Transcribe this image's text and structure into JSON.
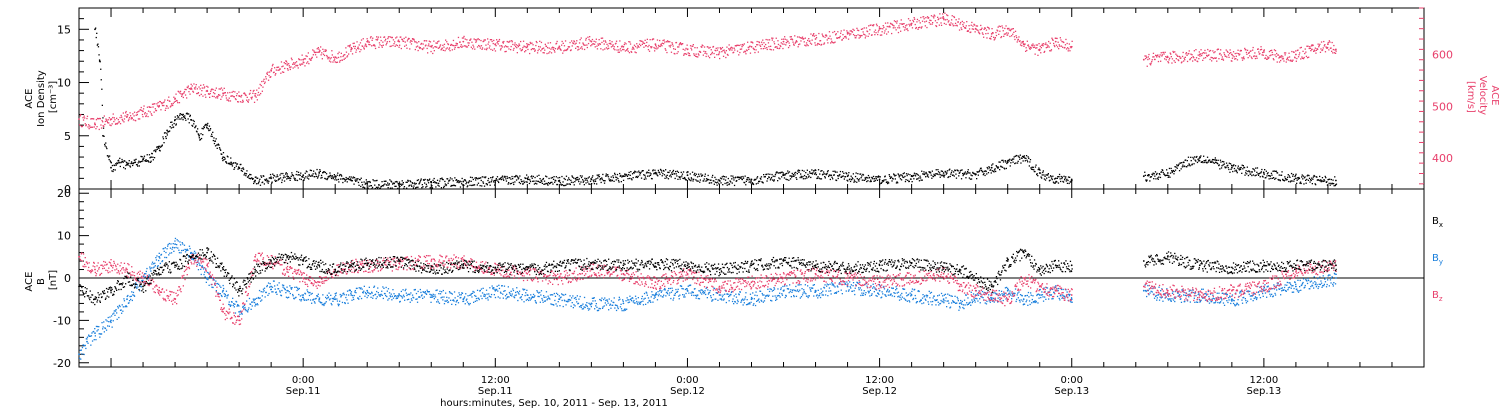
{
  "colors": {
    "axis": "#000000",
    "density": "#000000",
    "velocity": "#e8406c",
    "bx": "#000000",
    "by": "#1a7fdc",
    "bz": "#e8406c"
  },
  "x_axis": {
    "title": "hours:minutes, Sep. 10, 2011 - Sep. 13, 2011",
    "range_hours": [
      -14,
      70
    ],
    "ticks": [
      {
        "hour": 0,
        "time": "0:00",
        "date": "Sep.11"
      },
      {
        "hour": 12,
        "time": "12:00",
        "date": "Sep.11"
      },
      {
        "hour": 24,
        "time": "0:00",
        "date": "Sep.12"
      },
      {
        "hour": 36,
        "time": "12:00",
        "date": "Sep.12"
      },
      {
        "hour": 48,
        "time": "0:00",
        "date": "Sep.13"
      },
      {
        "hour": 60,
        "time": "12:00",
        "date": "Sep.13"
      }
    ]
  },
  "chart_data": [
    {
      "type": "scatter",
      "panel": "top",
      "left_axis": {
        "label_lines": [
          "ACE",
          "Ion Density",
          "[cm⁻³]"
        ],
        "ylim": [
          0,
          17
        ],
        "ticks": [
          0,
          5,
          10,
          15
        ]
      },
      "right_axis": {
        "label_lines": [
          "ACE",
          "Velocity",
          "[km/s]"
        ],
        "ylim": [
          340,
          690
        ],
        "ticks": [
          400,
          500,
          600
        ]
      },
      "gap_hours": [
        48,
        52.5
      ],
      "series": [
        {
          "key": "density",
          "axis": "left",
          "x": [
            -13,
            -12.7,
            -12.5,
            -12,
            -11.5,
            -11,
            -10.5,
            -10,
            -9.5,
            -9,
            -8.5,
            -8,
            -7.5,
            -7,
            -6.5,
            -6,
            -5.5,
            -5,
            -4.5,
            -4,
            -3,
            -2,
            -1,
            0,
            1,
            2,
            3,
            4,
            6,
            8,
            10,
            12,
            14,
            16,
            18,
            20,
            22,
            24,
            26,
            28,
            30,
            32,
            34,
            36,
            38,
            40,
            42,
            43,
            44,
            45,
            46,
            47,
            48,
            52.5,
            54,
            55,
            56,
            57,
            58,
            60,
            62,
            64.5
          ],
          "y": [
            15,
            12,
            5,
            2,
            2.5,
            2.3,
            2.5,
            2.8,
            3,
            4,
            5.5,
            6.5,
            7,
            6.5,
            5,
            6,
            4.5,
            3,
            2.5,
            2,
            0.8,
            1,
            1.2,
            1.3,
            1.5,
            1.2,
            0.8,
            0.5,
            0.5,
            0.6,
            0.7,
            0.8,
            1,
            0.8,
            0.9,
            1.2,
            1.5,
            1.3,
            0.8,
            0.9,
            1.3,
            1.5,
            1.2,
            0.9,
            1.2,
            1.5,
            1.4,
            2,
            2.5,
            3,
            1.5,
            1,
            0.9,
            1.2,
            1.5,
            2.5,
            3,
            2.5,
            2,
            1.5,
            1,
            0.8
          ]
        },
        {
          "key": "velocity",
          "axis": "right",
          "x": [
            -14,
            -13,
            -12,
            -11,
            -10,
            -9,
            -8,
            -7,
            -6,
            -5,
            -4,
            -3,
            -2,
            -1,
            0,
            1,
            2,
            3,
            4,
            6,
            8,
            10,
            12,
            14,
            16,
            18,
            20,
            22,
            24,
            26,
            28,
            30,
            32,
            34,
            36,
            38,
            40,
            42,
            43,
            44,
            45,
            46,
            47,
            48,
            52.5,
            54,
            56,
            58,
            60,
            61,
            62,
            63,
            64,
            64.5
          ],
          "y": [
            475,
            465,
            475,
            480,
            490,
            500,
            515,
            535,
            530,
            525,
            520,
            520,
            570,
            580,
            590,
            605,
            595,
            610,
            625,
            625,
            615,
            625,
            620,
            615,
            615,
            625,
            615,
            620,
            610,
            605,
            615,
            625,
            630,
            640,
            650,
            660,
            670,
            650,
            640,
            650,
            620,
            610,
            625,
            615,
            590,
            595,
            600,
            600,
            605,
            595,
            600,
            610,
            620,
            610
          ]
        }
      ]
    },
    {
      "type": "scatter",
      "panel": "bottom",
      "left_axis": {
        "label_lines": [
          "ACE",
          "B",
          "[nT]"
        ],
        "ylim": [
          -21,
          21
        ],
        "ticks": [
          -20,
          -10,
          0,
          10,
          20
        ]
      },
      "legend_placement": "right",
      "gap_hours": [
        48,
        52.5
      ],
      "series": [
        {
          "key": "bx",
          "name": "B",
          "subscript": "x",
          "x": [
            -14,
            -13,
            -12,
            -11,
            -10,
            -9,
            -8,
            -7,
            -6,
            -5,
            -4,
            -3,
            -2,
            -1,
            0,
            1,
            2,
            3,
            4,
            6,
            8,
            10,
            12,
            14,
            16,
            18,
            20,
            22,
            24,
            26,
            28,
            30,
            32,
            34,
            36,
            38,
            40,
            41,
            42,
            43,
            44,
            45,
            46,
            47,
            48,
            52.5,
            54,
            56,
            58,
            60,
            62,
            64.5
          ],
          "y": [
            -2,
            -5,
            -3,
            0,
            -2,
            2,
            3,
            5,
            6,
            2,
            -3,
            2,
            4,
            5,
            4,
            3,
            2,
            3,
            3.5,
            4,
            2,
            3,
            2.5,
            2,
            3,
            3.5,
            3,
            3.5,
            3,
            2,
            3,
            4,
            3,
            2.5,
            3,
            3.5,
            2.5,
            2,
            0,
            -2,
            4,
            6,
            2,
            3,
            3,
            4,
            5,
            3,
            2.5,
            3,
            3,
            3
          ]
        },
        {
          "key": "by",
          "name": "B",
          "subscript": "y",
          "x": [
            -14,
            -13.5,
            -13,
            -12,
            -11,
            -10,
            -9,
            -8,
            -7,
            -6,
            -5,
            -4,
            -3,
            -2,
            -1,
            0,
            1,
            2,
            3,
            4,
            6,
            8,
            10,
            12,
            14,
            16,
            18,
            20,
            22,
            24,
            26,
            28,
            30,
            32,
            34,
            36,
            38,
            40,
            41,
            42,
            43,
            44,
            45,
            46,
            47,
            48,
            52.5,
            54,
            56,
            58,
            60,
            62,
            64.5
          ],
          "y": [
            -18,
            -15,
            -13,
            -10,
            -5,
            0,
            5,
            8,
            6,
            0,
            -3,
            -8,
            -5,
            -2,
            -3,
            -4,
            -5,
            -5,
            -4,
            -3,
            -4,
            -4,
            -5,
            -3,
            -4,
            -5,
            -6,
            -6,
            -4,
            -3,
            -4,
            -5,
            -3,
            -3,
            -2,
            -3,
            -4,
            -5,
            -6,
            -4,
            -5,
            -3,
            -5,
            -4,
            -3,
            -5,
            -3,
            -4,
            -4,
            -5,
            -3,
            -2,
            0
          ]
        },
        {
          "key": "bz",
          "name": "B",
          "subscript": "z",
          "x": [
            -14,
            -13,
            -12,
            -11,
            -10,
            -9,
            -8,
            -7,
            -6,
            -5,
            -4,
            -3,
            -2,
            -1,
            0,
            1,
            2,
            3,
            4,
            6,
            8,
            10,
            12,
            14,
            16,
            18,
            20,
            22,
            24,
            26,
            28,
            30,
            32,
            34,
            36,
            38,
            40,
            41,
            42,
            43,
            44,
            45,
            46,
            47,
            48,
            52.5,
            54,
            56,
            58,
            60,
            62,
            64.5
          ],
          "y": [
            5,
            2,
            3,
            2,
            0,
            -3,
            -5,
            5,
            3,
            -8,
            -10,
            5,
            4,
            2,
            0,
            -1,
            2,
            3,
            3,
            3.5,
            4,
            4,
            2,
            1,
            0,
            2,
            1,
            -1,
            1,
            -2,
            -1,
            0,
            1,
            0,
            -1,
            0,
            1,
            -2,
            -3,
            -4,
            -5,
            0,
            -2,
            -3,
            -4,
            -2,
            -3,
            -4,
            -3,
            -2,
            2,
            3
          ]
        }
      ]
    }
  ]
}
